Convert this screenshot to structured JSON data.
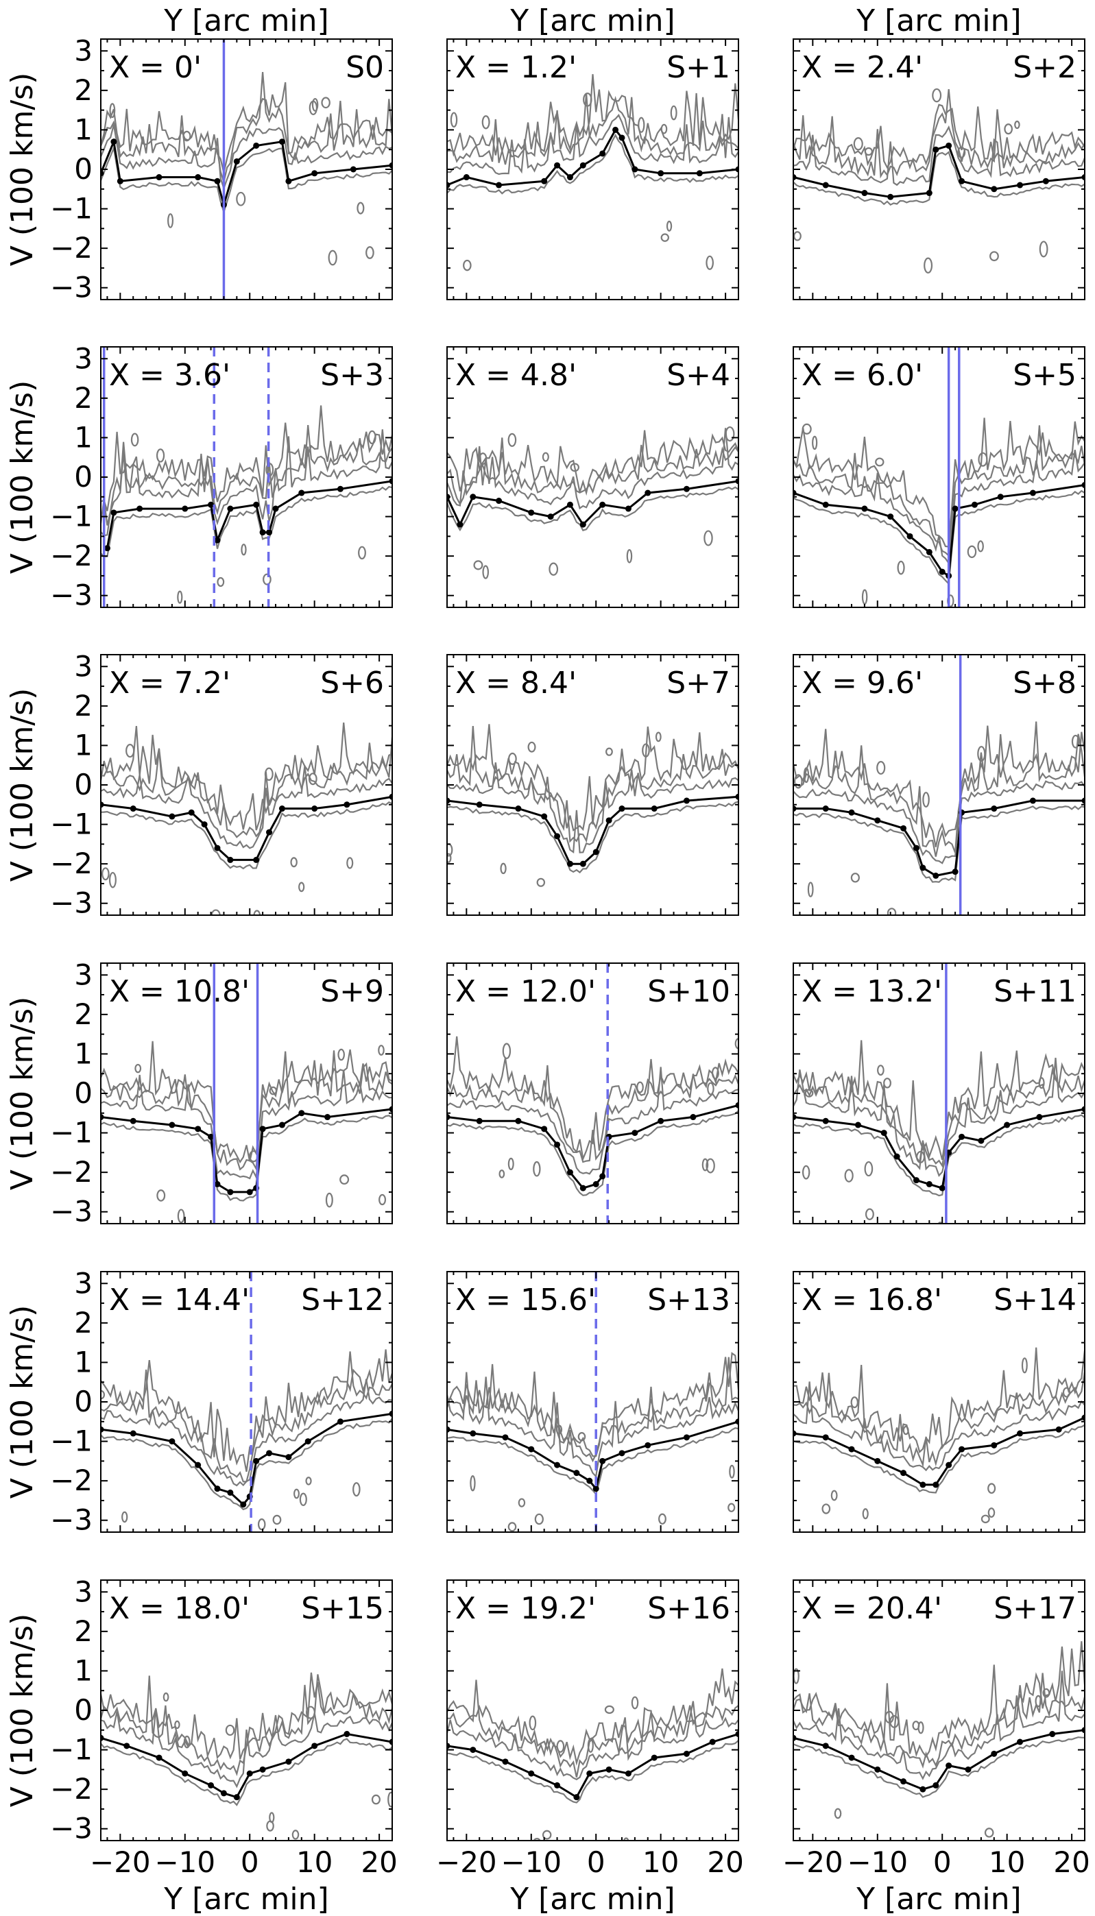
{
  "chart_data": {
    "type": "line",
    "description_free": true,
    "xlabel": "Y [arc min]",
    "ylabel": "V (100 km/s)",
    "xlim": [
      -23,
      22
    ],
    "ylim": [
      -3.3,
      3.3
    ],
    "xticks": [
      -20,
      -10,
      0,
      10,
      20
    ],
    "xtick_labels": [
      "−20",
      "−10",
      "0",
      "10",
      "20"
    ],
    "yticks": [
      3,
      2,
      1,
      0,
      -1,
      -2,
      -3
    ],
    "ytick_labels": [
      "3",
      "2",
      "1",
      "0",
      "−1",
      "−2",
      "−3"
    ],
    "panels": [
      {
        "xlabel": "X = 0'",
        "slit": "S0",
        "trace": [
          [
            -23,
            -0.1
          ],
          [
            -21,
            0.7
          ],
          [
            -20,
            -0.3
          ],
          [
            -14,
            -0.2
          ],
          [
            -8,
            -0.2
          ],
          [
            -5,
            -0.3
          ],
          [
            -4,
            -0.9
          ],
          [
            -2,
            0.2
          ],
          [
            1,
            0.6
          ],
          [
            5,
            0.7
          ],
          [
            6,
            -0.3
          ],
          [
            10,
            -0.1
          ],
          [
            16,
            0.0
          ],
          [
            22,
            0.1
          ]
        ],
        "vlines": [
          {
            "x": -4,
            "style": "solid"
          }
        ]
      },
      {
        "xlabel": "X = 1.2'",
        "slit": "S+1",
        "trace": [
          [
            -23,
            -0.4
          ],
          [
            -20,
            -0.2
          ],
          [
            -15,
            -0.4
          ],
          [
            -8,
            -0.3
          ],
          [
            -6,
            0.1
          ],
          [
            -4,
            -0.2
          ],
          [
            -2,
            0.1
          ],
          [
            1,
            0.4
          ],
          [
            3,
            1.0
          ],
          [
            4,
            0.8
          ],
          [
            6,
            0.0
          ],
          [
            10,
            -0.1
          ],
          [
            16,
            -0.1
          ],
          [
            22,
            0.0
          ]
        ],
        "vlines": []
      },
      {
        "xlabel": "X = 2.4'",
        "slit": "S+2",
        "trace": [
          [
            -23,
            -0.2
          ],
          [
            -18,
            -0.4
          ],
          [
            -12,
            -0.6
          ],
          [
            -8,
            -0.7
          ],
          [
            -2,
            -0.6
          ],
          [
            -1,
            0.5
          ],
          [
            1,
            0.6
          ],
          [
            3,
            -0.3
          ],
          [
            8,
            -0.5
          ],
          [
            12,
            -0.4
          ],
          [
            16,
            -0.3
          ],
          [
            22,
            -0.2
          ]
        ],
        "vlines": []
      },
      {
        "xlabel": "X = 3.6'",
        "slit": "S+3",
        "trace": [
          [
            -22,
            -1.8
          ],
          [
            -21,
            -0.9
          ],
          [
            -17,
            -0.8
          ],
          [
            -10,
            -0.8
          ],
          [
            -6,
            -0.7
          ],
          [
            -5,
            -1.6
          ],
          [
            -3,
            -0.8
          ],
          [
            1,
            -0.7
          ],
          [
            2,
            -1.4
          ],
          [
            3,
            -1.4
          ],
          [
            4,
            -0.8
          ],
          [
            8,
            -0.4
          ],
          [
            14,
            -0.3
          ],
          [
            22,
            -0.1
          ]
        ],
        "vlines": [
          {
            "x": -22.5,
            "style": "solid"
          },
          {
            "x": -5.5,
            "style": "dashed"
          },
          {
            "x": 2.9,
            "style": "dashed"
          }
        ]
      },
      {
        "xlabel": "X = 4.8'",
        "slit": "S+4",
        "trace": [
          [
            -23,
            -0.5
          ],
          [
            -21,
            -1.2
          ],
          [
            -19,
            -0.5
          ],
          [
            -15,
            -0.6
          ],
          [
            -10,
            -0.9
          ],
          [
            -7,
            -1.0
          ],
          [
            -4,
            -0.7
          ],
          [
            -2,
            -1.2
          ],
          [
            1,
            -0.7
          ],
          [
            5,
            -0.8
          ],
          [
            8,
            -0.4
          ],
          [
            14,
            -0.3
          ],
          [
            22,
            -0.1
          ]
        ],
        "vlines": []
      },
      {
        "xlabel": "X = 6.0'",
        "slit": "S+5",
        "trace": [
          [
            -23,
            -0.4
          ],
          [
            -18,
            -0.7
          ],
          [
            -12,
            -0.8
          ],
          [
            -8,
            -1.0
          ],
          [
            -5,
            -1.5
          ],
          [
            -2,
            -1.9
          ],
          [
            0,
            -2.4
          ],
          [
            1,
            -2.5
          ],
          [
            2,
            -0.8
          ],
          [
            5,
            -0.7
          ],
          [
            9,
            -0.5
          ],
          [
            14,
            -0.4
          ],
          [
            22,
            -0.2
          ]
        ],
        "vlines": [
          {
            "x": 1.0,
            "style": "solid"
          },
          {
            "x": 2.6,
            "style": "solid"
          }
        ]
      },
      {
        "xlabel": "X = 7.2'",
        "slit": "S+6",
        "trace": [
          [
            -23,
            -0.5
          ],
          [
            -18,
            -0.6
          ],
          [
            -12,
            -0.8
          ],
          [
            -9,
            -0.7
          ],
          [
            -7,
            -1.0
          ],
          [
            -5,
            -1.6
          ],
          [
            -3,
            -1.9
          ],
          [
            1,
            -1.9
          ],
          [
            3,
            -1.2
          ],
          [
            5,
            -0.6
          ],
          [
            10,
            -0.6
          ],
          [
            15,
            -0.5
          ],
          [
            22,
            -0.3
          ]
        ],
        "vlines": []
      },
      {
        "xlabel": "X = 8.4'",
        "slit": "S+7",
        "trace": [
          [
            -23,
            -0.4
          ],
          [
            -18,
            -0.5
          ],
          [
            -12,
            -0.6
          ],
          [
            -8,
            -0.8
          ],
          [
            -6,
            -1.3
          ],
          [
            -4,
            -2.0
          ],
          [
            -2,
            -2.0
          ],
          [
            0,
            -1.7
          ],
          [
            2,
            -0.9
          ],
          [
            4,
            -0.6
          ],
          [
            9,
            -0.6
          ],
          [
            14,
            -0.4
          ],
          [
            22,
            -0.3
          ]
        ],
        "vlines": []
      },
      {
        "xlabel": "X = 9.6'",
        "slit": "S+8",
        "trace": [
          [
            -23,
            -0.6
          ],
          [
            -18,
            -0.6
          ],
          [
            -14,
            -0.7
          ],
          [
            -10,
            -0.9
          ],
          [
            -6,
            -1.1
          ],
          [
            -4,
            -1.6
          ],
          [
            -3,
            -2.1
          ],
          [
            -1,
            -2.3
          ],
          [
            2,
            -2.2
          ],
          [
            3,
            -0.7
          ],
          [
            8,
            -0.6
          ],
          [
            14,
            -0.4
          ],
          [
            22,
            -0.4
          ]
        ],
        "vlines": [
          {
            "x": 2.8,
            "style": "solid"
          }
        ]
      },
      {
        "xlabel": "X = 10.8'",
        "slit": "S+9",
        "trace": [
          [
            -23,
            -0.6
          ],
          [
            -18,
            -0.7
          ],
          [
            -12,
            -0.8
          ],
          [
            -8,
            -0.9
          ],
          [
            -6,
            -1.1
          ],
          [
            -5,
            -2.3
          ],
          [
            -3,
            -2.5
          ],
          [
            0,
            -2.5
          ],
          [
            1,
            -2.4
          ],
          [
            2,
            -0.9
          ],
          [
            5,
            -0.8
          ],
          [
            8,
            -0.5
          ],
          [
            12,
            -0.6
          ],
          [
            22,
            -0.4
          ]
        ],
        "vlines": [
          {
            "x": -5.5,
            "style": "solid"
          },
          {
            "x": 1.2,
            "style": "solid"
          }
        ]
      },
      {
        "xlabel": "X = 12.0'",
        "slit": "S+10",
        "trace": [
          [
            -23,
            -0.6
          ],
          [
            -18,
            -0.7
          ],
          [
            -12,
            -0.7
          ],
          [
            -8,
            -0.9
          ],
          [
            -6,
            -1.3
          ],
          [
            -4,
            -2.0
          ],
          [
            -2,
            -2.4
          ],
          [
            0,
            -2.3
          ],
          [
            1,
            -2.1
          ],
          [
            2,
            -1.1
          ],
          [
            6,
            -1.0
          ],
          [
            10,
            -0.7
          ],
          [
            15,
            -0.6
          ],
          [
            22,
            -0.3
          ]
        ],
        "vlines": [
          {
            "x": 1.8,
            "style": "dashed"
          }
        ]
      },
      {
        "xlabel": "X = 13.2'",
        "slit": "S+11",
        "trace": [
          [
            -23,
            -0.6
          ],
          [
            -18,
            -0.7
          ],
          [
            -13,
            -0.8
          ],
          [
            -9,
            -1.0
          ],
          [
            -7,
            -1.6
          ],
          [
            -4,
            -2.2
          ],
          [
            -2,
            -2.3
          ],
          [
            0,
            -2.4
          ],
          [
            1,
            -1.5
          ],
          [
            3,
            -1.1
          ],
          [
            6,
            -1.2
          ],
          [
            10,
            -0.8
          ],
          [
            15,
            -0.6
          ],
          [
            22,
            -0.4
          ]
        ],
        "vlines": [
          {
            "x": 0.6,
            "style": "solid"
          }
        ]
      },
      {
        "xlabel": "X = 14.4'",
        "slit": "S+12",
        "trace": [
          [
            -23,
            -0.7
          ],
          [
            -18,
            -0.8
          ],
          [
            -12,
            -1.0
          ],
          [
            -8,
            -1.6
          ],
          [
            -5,
            -2.2
          ],
          [
            -3,
            -2.3
          ],
          [
            -1,
            -2.6
          ],
          [
            0,
            -2.4
          ],
          [
            1,
            -1.5
          ],
          [
            3,
            -1.3
          ],
          [
            6,
            -1.4
          ],
          [
            9,
            -1.0
          ],
          [
            14,
            -0.5
          ],
          [
            22,
            -0.3
          ]
        ],
        "vlines": [
          {
            "x": 0.2,
            "style": "dashed"
          }
        ]
      },
      {
        "xlabel": "X = 15.6'",
        "slit": "S+13",
        "trace": [
          [
            -23,
            -0.7
          ],
          [
            -19,
            -0.8
          ],
          [
            -14,
            -0.9
          ],
          [
            -10,
            -1.2
          ],
          [
            -6,
            -1.6
          ],
          [
            -3,
            -1.8
          ],
          [
            -1,
            -2.0
          ],
          [
            0,
            -2.2
          ],
          [
            1,
            -1.5
          ],
          [
            4,
            -1.3
          ],
          [
            8,
            -1.1
          ],
          [
            14,
            -0.9
          ],
          [
            22,
            -0.5
          ]
        ],
        "vlines": [
          {
            "x": 0.0,
            "style": "dashed"
          }
        ]
      },
      {
        "xlabel": "X = 16.8'",
        "slit": "S+14",
        "trace": [
          [
            -23,
            -0.8
          ],
          [
            -18,
            -0.9
          ],
          [
            -14,
            -1.2
          ],
          [
            -10,
            -1.5
          ],
          [
            -6,
            -1.8
          ],
          [
            -3,
            -2.1
          ],
          [
            -1,
            -2.1
          ],
          [
            1,
            -1.6
          ],
          [
            3,
            -1.2
          ],
          [
            8,
            -1.1
          ],
          [
            12,
            -0.8
          ],
          [
            18,
            -0.7
          ],
          [
            22,
            -0.4
          ]
        ],
        "vlines": []
      },
      {
        "xlabel": "X = 18.0'",
        "slit": "S+15",
        "trace": [
          [
            -23,
            -0.7
          ],
          [
            -19,
            -0.9
          ],
          [
            -14,
            -1.2
          ],
          [
            -10,
            -1.6
          ],
          [
            -6,
            -1.9
          ],
          [
            -4,
            -2.1
          ],
          [
            -2,
            -2.2
          ],
          [
            0,
            -1.6
          ],
          [
            2,
            -1.5
          ],
          [
            6,
            -1.3
          ],
          [
            10,
            -0.9
          ],
          [
            15,
            -0.6
          ],
          [
            22,
            -0.8
          ]
        ],
        "vlines": []
      },
      {
        "xlabel": "X = 19.2'",
        "slit": "S+16",
        "trace": [
          [
            -23,
            -0.9
          ],
          [
            -19,
            -1.0
          ],
          [
            -14,
            -1.3
          ],
          [
            -10,
            -1.6
          ],
          [
            -6,
            -1.9
          ],
          [
            -3,
            -2.2
          ],
          [
            -1,
            -1.6
          ],
          [
            2,
            -1.5
          ],
          [
            5,
            -1.6
          ],
          [
            9,
            -1.2
          ],
          [
            14,
            -1.1
          ],
          [
            18,
            -0.8
          ],
          [
            22,
            -0.6
          ]
        ],
        "vlines": []
      },
      {
        "xlabel": "X = 20.4'",
        "slit": "S+17",
        "trace": [
          [
            -23,
            -0.7
          ],
          [
            -18,
            -0.9
          ],
          [
            -14,
            -1.2
          ],
          [
            -10,
            -1.5
          ],
          [
            -6,
            -1.8
          ],
          [
            -3,
            -2.0
          ],
          [
            -1,
            -1.9
          ],
          [
            1,
            -1.4
          ],
          [
            4,
            -1.5
          ],
          [
            8,
            -1.1
          ],
          [
            12,
            -0.8
          ],
          [
            17,
            -0.6
          ],
          [
            22,
            -0.5
          ]
        ],
        "vlines": []
      }
    ]
  }
}
